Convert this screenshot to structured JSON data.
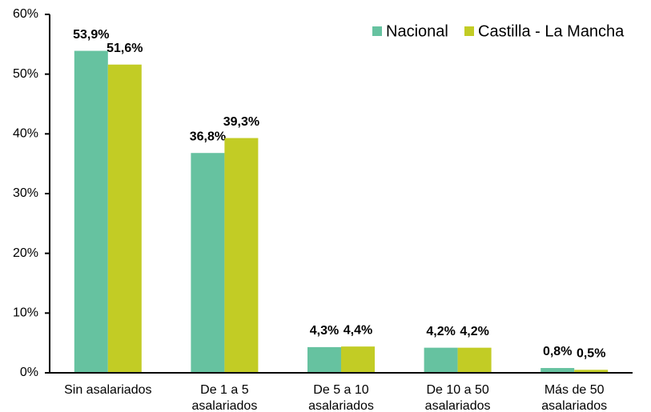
{
  "chart_data": {
    "type": "bar",
    "categories": [
      [
        "Sin asalariados"
      ],
      [
        "De 1 a 5",
        "asalariados"
      ],
      [
        "De 5 a 10",
        "asalariados"
      ],
      [
        "De 10 a 50",
        "asalariados"
      ],
      [
        "Más de 50",
        "asalariados"
      ]
    ],
    "series": [
      {
        "name": "Nacional",
        "color": "#66c2a0",
        "values": [
          53.9,
          36.8,
          4.3,
          4.2,
          0.8
        ],
        "value_labels": [
          "53,9%",
          "36,8%",
          "4,3%",
          "4,2%",
          "0,8%"
        ]
      },
      {
        "name": "Castilla - La Mancha",
        "color": "#c2cc25",
        "values": [
          51.6,
          39.3,
          4.4,
          4.2,
          0.5
        ],
        "value_labels": [
          "51,6%",
          "39,3%",
          "4,4%",
          "4,2%",
          "0,5%"
        ]
      }
    ],
    "ylim": [
      0,
      60
    ],
    "yticks": [
      {
        "value": 0,
        "label": "0%"
      },
      {
        "value": 10,
        "label": "10%"
      },
      {
        "value": 20,
        "label": "20%"
      },
      {
        "value": 30,
        "label": "30%"
      },
      {
        "value": 40,
        "label": "40%"
      },
      {
        "value": 50,
        "label": "50%"
      },
      {
        "value": 60,
        "label": "60%"
      }
    ],
    "legend": "top-right"
  }
}
